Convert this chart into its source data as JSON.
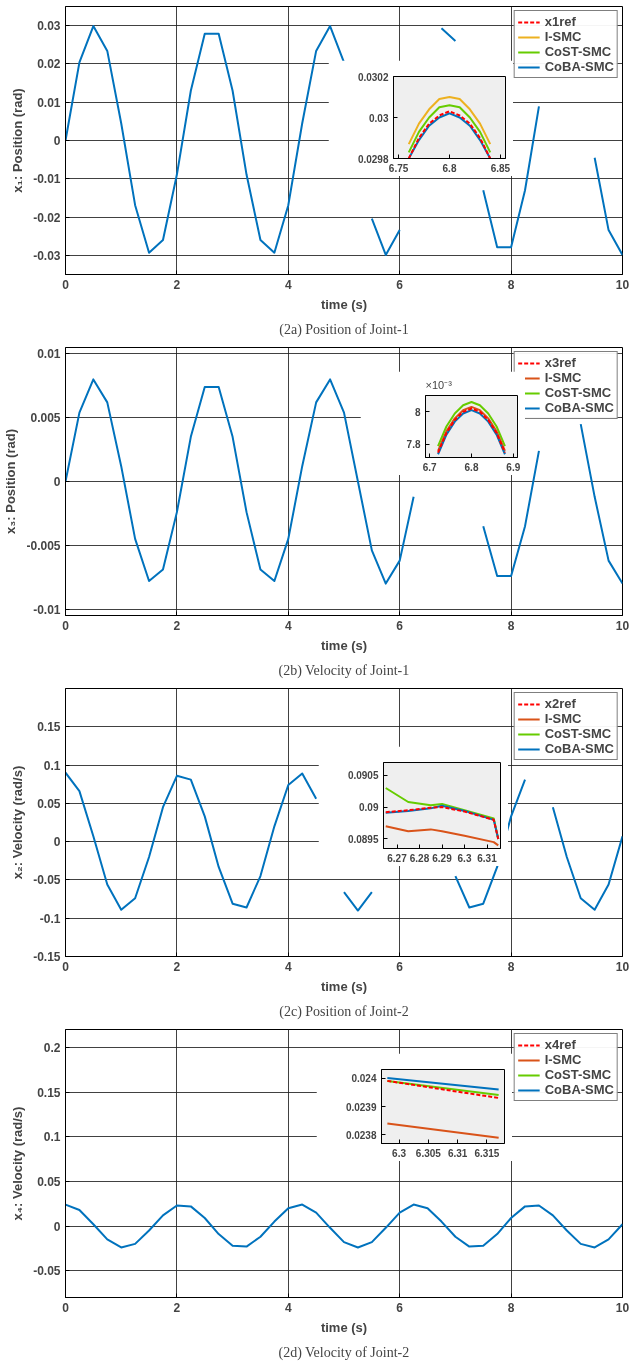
{
  "chart_data": [
    {
      "type": "line",
      "title": "(2a) Position of Joint-1",
      "xlabel": "time (s)",
      "ylabel": "x₁: Position (rad)",
      "xlim": [
        0,
        10
      ],
      "xticks": [
        0,
        2,
        4,
        6,
        8,
        10
      ],
      "ylim": [
        -0.035,
        0.035
      ],
      "yticks": [
        -0.03,
        -0.02,
        -0.01,
        0,
        0.01,
        0.02,
        0.03
      ],
      "grid": true,
      "legend": "top right",
      "x": [
        0,
        0.25,
        0.5,
        0.75,
        1,
        1.25,
        1.5,
        1.75,
        2,
        2.25,
        2.5,
        2.75,
        3,
        3.25,
        3.5,
        3.75,
        4,
        4.25,
        4.5,
        4.75,
        5,
        5.25,
        5.5,
        5.75,
        6,
        6.25,
        6.5,
        6.75,
        7,
        7.25,
        7.5,
        7.75,
        8,
        8.25,
        8.5,
        8.75,
        9,
        9.25,
        9.5,
        9.75,
        10
      ],
      "series": [
        {
          "name": "x1ref",
          "color": "#ff0000",
          "line_style": "dashed",
          "values": [
            null,
            null,
            null,
            null,
            null,
            null,
            null,
            null,
            null,
            null,
            null,
            null,
            null,
            null,
            null,
            null,
            null,
            null,
            null,
            null,
            null,
            null,
            null,
            null,
            null,
            null,
            null,
            null,
            null,
            null,
            null,
            null,
            null,
            null,
            null,
            null,
            null,
            null,
            null,
            null,
            null
          ]
        },
        {
          "name": "I-SMC",
          "color": "#edb120",
          "values": [
            null,
            null,
            null,
            null,
            null,
            null,
            null,
            null,
            null,
            null,
            null,
            null,
            null,
            null,
            null,
            null,
            null,
            null,
            null,
            null,
            null,
            null,
            null,
            null,
            null,
            null,
            null,
            null,
            null,
            null,
            null,
            null,
            null,
            null,
            null,
            null,
            null,
            null,
            null,
            null,
            null
          ]
        },
        {
          "name": "CoST-SMC",
          "color": "#66cc00",
          "values": [
            null,
            null,
            null,
            null,
            null,
            null,
            null,
            null,
            null,
            null,
            null,
            null,
            null,
            null,
            null,
            null,
            null,
            null,
            null,
            null,
            null,
            null,
            null,
            null,
            null,
            null,
            null,
            null,
            null,
            null,
            null,
            null,
            null,
            null,
            null,
            null,
            null,
            null,
            null,
            null,
            null
          ]
        },
        {
          "name": "CoBA-SMC",
          "color": "#0072bd",
          "values": [
            0,
            0.0204,
            0.0299,
            0.0234,
            0.0045,
            -0.0169,
            -0.0293,
            -0.026,
            -0.0089,
            0.013,
            0.0279,
            0.0279,
            0.013,
            -0.0089,
            -0.026,
            -0.0293,
            -0.0169,
            0.0045,
            0.0234,
            0.0299,
            0.0204,
            null,
            -0.0204,
            -0.0299,
            -0.0234,
            null,
            null,
            0.0293,
            0.026,
            null,
            -0.013,
            -0.0279,
            -0.0279,
            -0.013,
            0.0089,
            null,
            null,
            null,
            -0.0045,
            -0.0234,
            -0.0299
          ]
        }
      ]
    },
    {
      "type": "line",
      "xlim": [
        6.745,
        6.855
      ],
      "xticks": [
        6.75,
        6.8,
        6.85
      ],
      "ylim": [
        0.0298,
        0.0302
      ],
      "yticks": [
        0.0298,
        0.03,
        0.0302
      ],
      "x": [
        6.76,
        6.77,
        6.78,
        6.79,
        6.8,
        6.81,
        6.82,
        6.83,
        6.84
      ],
      "series": [
        {
          "color": "#edb120",
          "values": [
            0.02987,
            0.02997,
            0.03004,
            0.03009,
            0.0301,
            0.03009,
            0.03004,
            0.02997,
            0.02987
          ]
        },
        {
          "color": "#66cc00",
          "values": [
            0.02983,
            0.02993,
            0.03,
            0.03005,
            0.03006,
            0.03005,
            0.03,
            0.02993,
            0.02983
          ]
        },
        {
          "color": "#0072bd",
          "values": [
            0.0298,
            0.02989,
            0.02996,
            0.03,
            0.03002,
            0.03,
            0.02996,
            0.02989,
            0.0298
          ]
        },
        {
          "color": "#ff0000",
          "line_style": "dashed",
          "values": [
            0.0298,
            0.0299,
            0.02997,
            0.03001,
            0.03003,
            0.03001,
            0.02997,
            0.0299,
            0.0298
          ]
        }
      ]
    },
    {
      "type": "line",
      "title": "(2b) Velocity of Joint-1",
      "xlabel": "time (s)",
      "ylabel": "x₃: Position (rad)",
      "xlim": [
        0,
        10
      ],
      "xticks": [
        0,
        2,
        4,
        6,
        8,
        10
      ],
      "ylim": [
        -0.0105,
        0.0105
      ],
      "yticks": [
        -0.01,
        -0.005,
        0,
        0.005,
        0.01
      ],
      "grid": true,
      "legend": "top right",
      "x": [
        0,
        0.25,
        0.5,
        0.75,
        1,
        1.25,
        1.5,
        1.75,
        2,
        2.25,
        2.5,
        2.75,
        3,
        3.25,
        3.5,
        3.75,
        4,
        4.25,
        4.5,
        4.75,
        5,
        5.25,
        5.5,
        5.75,
        6,
        6.25,
        6.5,
        6.75,
        7,
        7.25,
        7.5,
        7.75,
        8,
        8.25,
        8.5,
        8.75,
        9,
        9.25,
        9.5,
        9.75,
        10
      ],
      "series": [
        {
          "name": "x3ref",
          "color": "#ff0000",
          "line_style": "dashed",
          "values": [
            null,
            null,
            null,
            null,
            null,
            null,
            null,
            null,
            null,
            null,
            null,
            null,
            null,
            null,
            null,
            null,
            null,
            null,
            null,
            null,
            null,
            null,
            null,
            null,
            null,
            null,
            null,
            null,
            null,
            null,
            null,
            null,
            null,
            null,
            null,
            null,
            null,
            null,
            null,
            null,
            null
          ]
        },
        {
          "name": "I-SMC",
          "color": "#d95319",
          "values": [
            null,
            null,
            null,
            null,
            null,
            null,
            null,
            null,
            null,
            null,
            null,
            null,
            null,
            null,
            null,
            null,
            null,
            null,
            null,
            null,
            null,
            null,
            null,
            null,
            null,
            null,
            null,
            null,
            null,
            null,
            null,
            null,
            null,
            null,
            null,
            null,
            null,
            null,
            null,
            null,
            null
          ]
        },
        {
          "name": "CoST-SMC",
          "color": "#66cc00",
          "values": [
            null,
            null,
            null,
            null,
            null,
            null,
            null,
            null,
            null,
            null,
            null,
            null,
            null,
            null,
            null,
            null,
            null,
            null,
            null,
            null,
            null,
            null,
            null,
            null,
            null,
            null,
            null,
            null,
            null,
            null,
            null,
            null,
            null,
            null,
            null,
            null,
            null,
            null,
            null,
            null,
            null
          ]
        },
        {
          "name": "CoBA-SMC",
          "color": "#0072bd",
          "values": [
            0,
            0.0054,
            0.008,
            0.0062,
            0.0012,
            -0.0045,
            -0.0078,
            -0.0069,
            -0.0024,
            0.0035,
            0.0074,
            0.0074,
            0.0035,
            -0.0024,
            -0.0069,
            -0.0078,
            -0.0045,
            0.0012,
            0.0062,
            0.008,
            0.0054,
            0,
            -0.0054,
            -0.008,
            -0.0062,
            -0.0012,
            null,
            null,
            null,
            null,
            -0.0035,
            -0.0074,
            -0.0074,
            -0.0035,
            0.0024,
            null,
            null,
            0.0045,
            -0.0012,
            -0.0062,
            -0.008
          ]
        }
      ]
    },
    {
      "type": "line",
      "annotations": [
        "×10⁻³"
      ],
      "xlim": [
        6.69,
        6.91
      ],
      "xticks": [
        6.7,
        6.8,
        6.9
      ],
      "ylim": [
        7.72,
        8.1
      ],
      "yticks": [
        7.8,
        8
      ],
      "x": [
        6.72,
        6.74,
        6.76,
        6.78,
        6.8,
        6.82,
        6.84,
        6.86,
        6.88
      ],
      "series": [
        {
          "color": "#66cc00",
          "values": [
            7.79,
            7.91,
            7.99,
            8.04,
            8.06,
            8.04,
            7.99,
            7.91,
            7.79
          ]
        },
        {
          "color": "#d95319",
          "values": [
            7.76,
            7.88,
            7.96,
            8.01,
            8.03,
            8.01,
            7.96,
            7.88,
            7.76
          ]
        },
        {
          "color": "#0072bd",
          "values": [
            7.74,
            7.86,
            7.94,
            7.99,
            8.01,
            7.99,
            7.94,
            7.86,
            7.74
          ]
        },
        {
          "color": "#ff0000",
          "line_style": "dashed",
          "values": [
            7.75,
            7.87,
            7.95,
            8.0,
            8.02,
            8.0,
            7.95,
            7.87,
            7.75
          ]
        }
      ]
    },
    {
      "type": "line",
      "title": "(2c) Position of Joint-2",
      "xlabel": "time (s)",
      "ylabel": "x₂: Velocity (rad/s)",
      "xlim": [
        0,
        10
      ],
      "xticks": [
        0,
        2,
        4,
        6,
        8,
        10
      ],
      "ylim": [
        -0.15,
        0.2
      ],
      "yticks": [
        -0.15,
        -0.1,
        -0.05,
        0,
        0.05,
        0.1,
        0.15
      ],
      "grid": true,
      "legend": "top right",
      "x": [
        0,
        0.25,
        0.5,
        0.75,
        1,
        1.25,
        1.5,
        1.75,
        2,
        2.25,
        2.5,
        2.75,
        3,
        3.25,
        3.5,
        3.75,
        4,
        4.25,
        4.5,
        4.75,
        5,
        5.25,
        5.5,
        5.75,
        6,
        6.25,
        6.5,
        6.75,
        7,
        7.25,
        7.5,
        7.75,
        8,
        8.25,
        8.5,
        8.75,
        9,
        9.25,
        9.5,
        9.75,
        10
      ],
      "series": [
        {
          "name": "x2ref",
          "color": "#ff0000",
          "line_style": "dashed",
          "values": [
            null,
            null,
            null,
            null,
            null,
            null,
            null,
            null,
            null,
            null,
            null,
            null,
            null,
            null,
            null,
            null,
            null,
            null,
            null,
            null,
            null,
            null,
            null,
            null,
            null,
            null,
            null,
            null,
            null,
            null,
            null,
            null,
            null,
            null,
            null,
            null,
            null,
            null,
            null,
            null,
            null
          ]
        },
        {
          "name": "I-SMC",
          "color": "#d95319",
          "values": [
            null,
            null,
            null,
            null,
            null,
            null,
            null,
            null,
            null,
            null,
            null,
            null,
            null,
            null,
            null,
            null,
            null,
            null,
            null,
            null,
            null,
            null,
            null,
            null,
            null,
            null,
            null,
            null,
            null,
            null,
            null,
            null,
            null,
            null,
            null,
            null,
            null,
            null,
            null,
            null,
            null
          ]
        },
        {
          "name": "CoST-SMC",
          "color": "#66cc00",
          "values": [
            null,
            null,
            null,
            null,
            null,
            null,
            null,
            null,
            null,
            null,
            null,
            null,
            null,
            null,
            null,
            null,
            null,
            null,
            null,
            null,
            null,
            null,
            null,
            null,
            null,
            null,
            null,
            null,
            null,
            null,
            null,
            null,
            null,
            null,
            null,
            null,
            null,
            null,
            null,
            null,
            null
          ]
        },
        {
          "name": "CoBA-SMC",
          "color": "#0072bd",
          "values": [
            0.09,
            0.066,
            0.007,
            -0.056,
            -0.089,
            -0.074,
            -0.02,
            0.045,
            0.086,
            0.081,
            0.033,
            -0.033,
            -0.081,
            -0.086,
            -0.045,
            0.02,
            0.074,
            0.089,
            0.056,
            null,
            -0.066,
            -0.09,
            -0.066,
            null,
            null,
            null,
            null,
            null,
            -0.045,
            -0.086,
            -0.081,
            -0.033,
            0.033,
            0.081,
            null,
            0.045,
            -0.02,
            -0.074,
            -0.089,
            -0.056,
            0.007
          ]
        }
      ]
    },
    {
      "type": "line",
      "xlim": [
        6.264,
        6.316
      ],
      "xticks": [
        6.27,
        6.28,
        6.29,
        6.3,
        6.31
      ],
      "ylim": [
        0.08935,
        0.0907
      ],
      "yticks": [
        0.0895,
        0.09,
        0.0905
      ],
      "x": [
        6.265,
        6.275,
        6.285,
        6.29,
        6.3,
        6.313,
        6.315
      ],
      "series": [
        {
          "color": "#d95319",
          "values": [
            0.0897,
            0.08962,
            0.08965,
            0.08962,
            0.08955,
            0.08945,
            0.0894
          ]
        },
        {
          "color": "#66cc00",
          "values": [
            0.0903,
            0.09008,
            0.09003,
            0.09005,
            0.08995,
            0.08982,
            0.0895
          ]
        },
        {
          "color": "#0072bd",
          "values": [
            0.08991,
            0.08994,
            0.08998,
            0.09002,
            0.08994,
            0.0898,
            0.0895
          ]
        },
        {
          "color": "#ff0000",
          "line_style": "dashed",
          "values": [
            0.08992,
            0.08995,
            0.08999,
            0.09,
            0.08993,
            0.0898,
            0.0895
          ]
        }
      ]
    },
    {
      "type": "line",
      "title": "(2d) Velocity of Joint-2",
      "xlabel": "time (s)",
      "ylabel": "x₄: Velocity (rad/s)",
      "xlim": [
        0,
        10
      ],
      "xticks": [
        0,
        2,
        4,
        6,
        8,
        10
      ],
      "ylim": [
        -0.08,
        0.22
      ],
      "yticks": [
        -0.05,
        0,
        0.05,
        0.1,
        0.15,
        0.2
      ],
      "grid": true,
      "legend": "top right",
      "x": [
        0,
        0.25,
        0.5,
        0.75,
        1,
        1.25,
        1.5,
        1.75,
        2,
        2.25,
        2.5,
        2.75,
        3,
        3.25,
        3.5,
        3.75,
        4,
        4.25,
        4.5,
        4.75,
        5,
        5.25,
        5.5,
        5.75,
        6,
        6.25,
        6.5,
        6.75,
        7,
        7.25,
        7.5,
        7.75,
        8,
        8.25,
        8.5,
        8.75,
        9,
        9.25,
        9.5,
        9.75,
        10
      ],
      "series": [
        {
          "name": "x4ref",
          "color": "#ff0000",
          "line_style": "dashed",
          "values": [
            null,
            null,
            null,
            null,
            null,
            null,
            null,
            null,
            null,
            null,
            null,
            null,
            null,
            null,
            null,
            null,
            null,
            null,
            null,
            null,
            null,
            null,
            null,
            null,
            null,
            null,
            null,
            null,
            null,
            null,
            null,
            null,
            null,
            null,
            null,
            null,
            null,
            null,
            null,
            null,
            null
          ]
        },
        {
          "name": "I-SMC",
          "color": "#d95319",
          "values": [
            null,
            null,
            null,
            null,
            null,
            null,
            null,
            null,
            null,
            null,
            null,
            null,
            null,
            null,
            null,
            null,
            null,
            null,
            null,
            null,
            null,
            null,
            null,
            null,
            null,
            null,
            null,
            null,
            null,
            null,
            null,
            null,
            null,
            null,
            null,
            null,
            null,
            null,
            null,
            null,
            null
          ]
        },
        {
          "name": "CoST-SMC",
          "color": "#66cc00",
          "values": [
            null,
            null,
            null,
            null,
            null,
            null,
            null,
            null,
            null,
            null,
            null,
            null,
            null,
            null,
            null,
            null,
            null,
            null,
            null,
            null,
            null,
            null,
            null,
            null,
            null,
            null,
            null,
            null,
            null,
            null,
            null,
            null,
            null,
            null,
            null,
            null,
            null,
            null,
            null,
            null,
            null
          ]
        },
        {
          "name": "CoBA-SMC",
          "color": "#0072bd",
          "values": [
            0.024,
            0.018,
            0.002,
            -0.015,
            -0.024,
            -0.02,
            -0.005,
            0.012,
            0.023,
            0.022,
            0.009,
            -0.009,
            -0.022,
            -0.023,
            -0.012,
            0.005,
            0.02,
            0.024,
            0.015,
            -0.002,
            -0.018,
            -0.024,
            -0.018,
            -0.002,
            0.015,
            0.024,
            0.02,
            0.005,
            -0.012,
            -0.023,
            -0.022,
            -0.009,
            0.009,
            0.022,
            0.023,
            0.012,
            -0.005,
            -0.02,
            -0.024,
            -0.015,
            0.002
          ]
        }
      ]
    },
    {
      "type": "line",
      "xlim": [
        6.297,
        6.318
      ],
      "xticks": [
        6.3,
        6.305,
        6.31,
        6.315
      ],
      "ylim": [
        0.02377,
        0.02403
      ],
      "yticks": [
        0.0238,
        0.0239,
        0.024
      ],
      "x": [
        6.298,
        6.317
      ],
      "series": [
        {
          "color": "#d95319",
          "values": [
            0.02384,
            0.02379
          ]
        },
        {
          "color": "#66cc00",
          "values": [
            0.02399,
            0.02394
          ]
        },
        {
          "color": "#0072bd",
          "values": [
            0.024,
            0.02396
          ]
        },
        {
          "color": "#ff0000",
          "line_style": "dashed",
          "values": [
            0.02399,
            0.02393
          ]
        }
      ]
    }
  ]
}
